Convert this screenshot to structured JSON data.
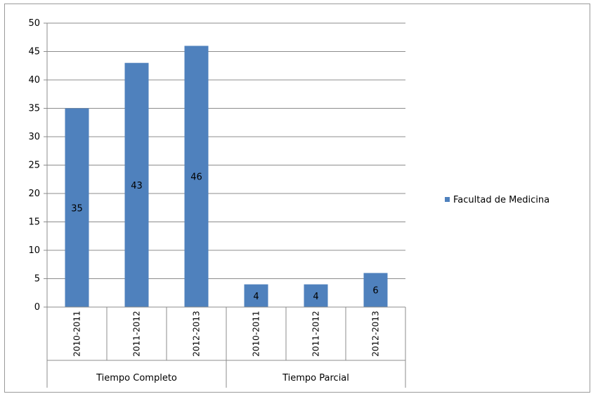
{
  "chart_data": {
    "type": "bar",
    "groups": [
      {
        "label": "Tiempo Completo",
        "categories": [
          "2010-2011",
          "2011-2012",
          "2012-2013"
        ]
      },
      {
        "label": "Tiempo Parcial",
        "categories": [
          "2010-2011",
          "2011-2012",
          "2012-2013"
        ]
      }
    ],
    "categories": [
      "2010-2011",
      "2011-2012",
      "2012-2013",
      "2010-2011",
      "2011-2012",
      "2012-2013"
    ],
    "series": [
      {
        "name": "Facultad de Medicina",
        "values": [
          35,
          43,
          46,
          4,
          4,
          6
        ],
        "color": "#4f81bd"
      }
    ],
    "data_labels": [
      "35",
      "43",
      "46",
      "4",
      "4",
      "6"
    ],
    "yticks": [
      "0",
      "5",
      "10",
      "15",
      "20",
      "25",
      "30",
      "35",
      "40",
      "45",
      "50"
    ],
    "ylim": [
      0,
      50
    ],
    "grid": true,
    "legend_position": "right",
    "title": "",
    "xlabel": "",
    "ylabel": ""
  }
}
